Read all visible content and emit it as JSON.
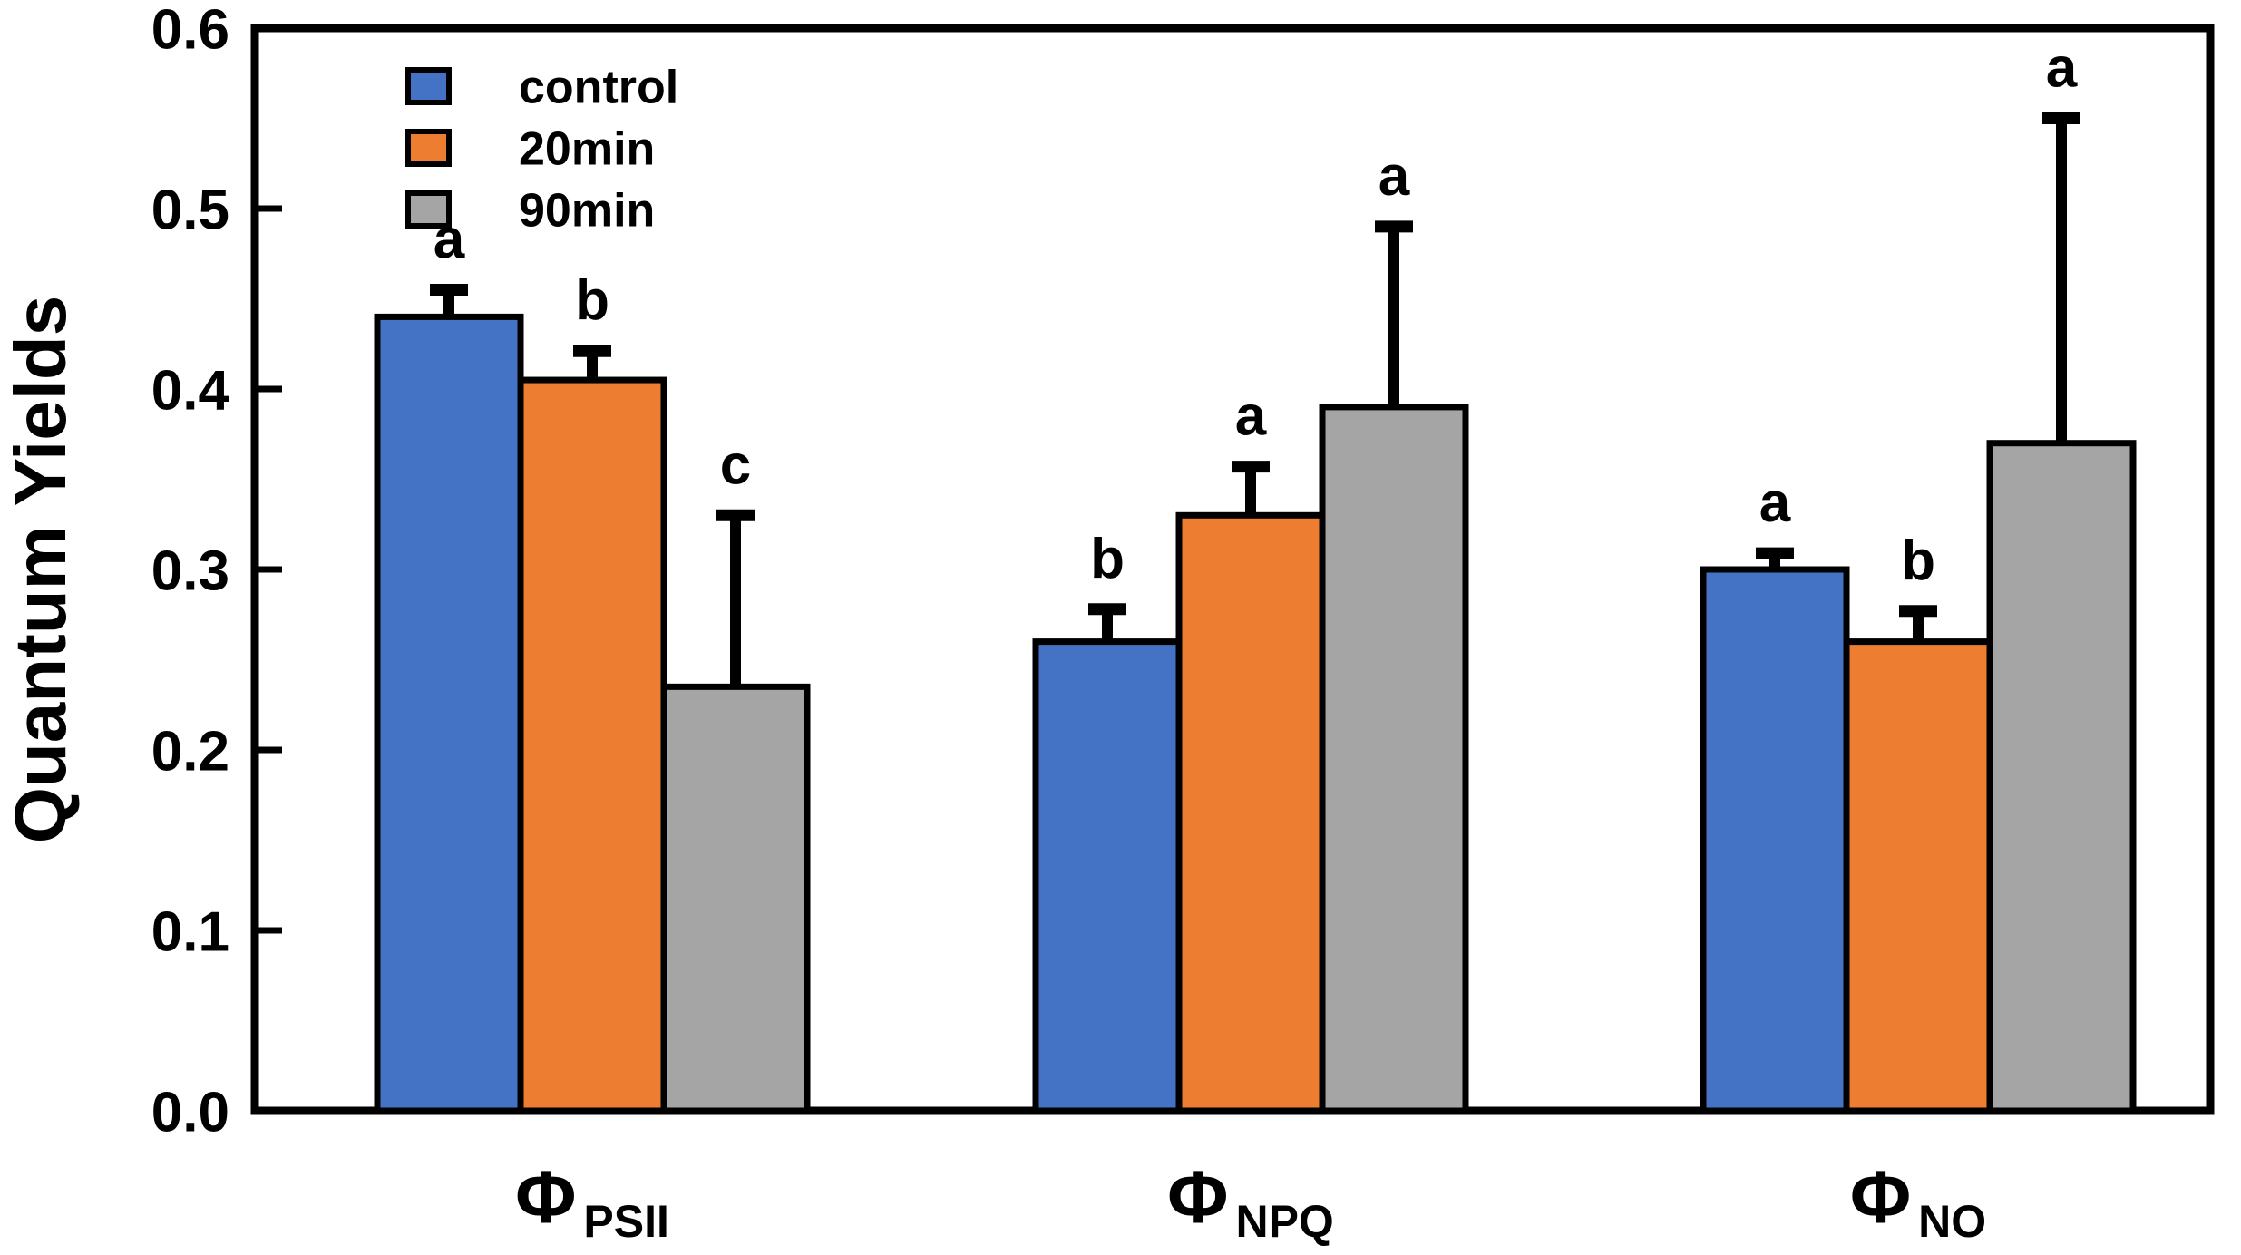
{
  "chart_data": {
    "type": "bar",
    "title": "",
    "xlabel": "",
    "ylabel": "Quantum Yields",
    "ylim": [
      0.0,
      0.6
    ],
    "yticks": [
      0.0,
      0.1,
      0.2,
      0.3,
      0.4,
      0.5,
      0.6
    ],
    "ytick_labels": [
      "0.0",
      "0.1",
      "0.2",
      "0.3",
      "0.4",
      "0.5",
      "0.6"
    ],
    "grid": false,
    "frame": true,
    "categories": [
      {
        "base": "Φ",
        "sub": "PSII"
      },
      {
        "base": "Φ",
        "sub": "NPQ"
      },
      {
        "base": "Φ",
        "sub": "NO"
      }
    ],
    "series": [
      {
        "name": "control",
        "color": "#4472C4",
        "values": [
          0.44,
          0.26,
          0.3
        ],
        "errors_plus": [
          0.015,
          0.018,
          0.009
        ],
        "sig_letters": [
          "a",
          "b",
          "a"
        ]
      },
      {
        "name": "20min",
        "color": "#ED7D31",
        "values": [
          0.405,
          0.33,
          0.26
        ],
        "errors_plus": [
          0.016,
          0.027,
          0.017
        ],
        "sig_letters": [
          "b",
          "a",
          "b"
        ]
      },
      {
        "name": "90min",
        "color": "#A5A5A5",
        "values": [
          0.235,
          0.39,
          0.37
        ],
        "errors_plus": [
          0.095,
          0.1,
          0.18
        ],
        "sig_letters": [
          "c",
          "a",
          "a"
        ]
      }
    ],
    "legend": {
      "position": "top-left",
      "labels": [
        "control",
        "20min",
        "90min"
      ]
    },
    "colors": {
      "bar_edge": "#000000",
      "error_bar": "#000000",
      "axis": "#000000",
      "text": "#000000",
      "background": "#ffffff"
    }
  }
}
